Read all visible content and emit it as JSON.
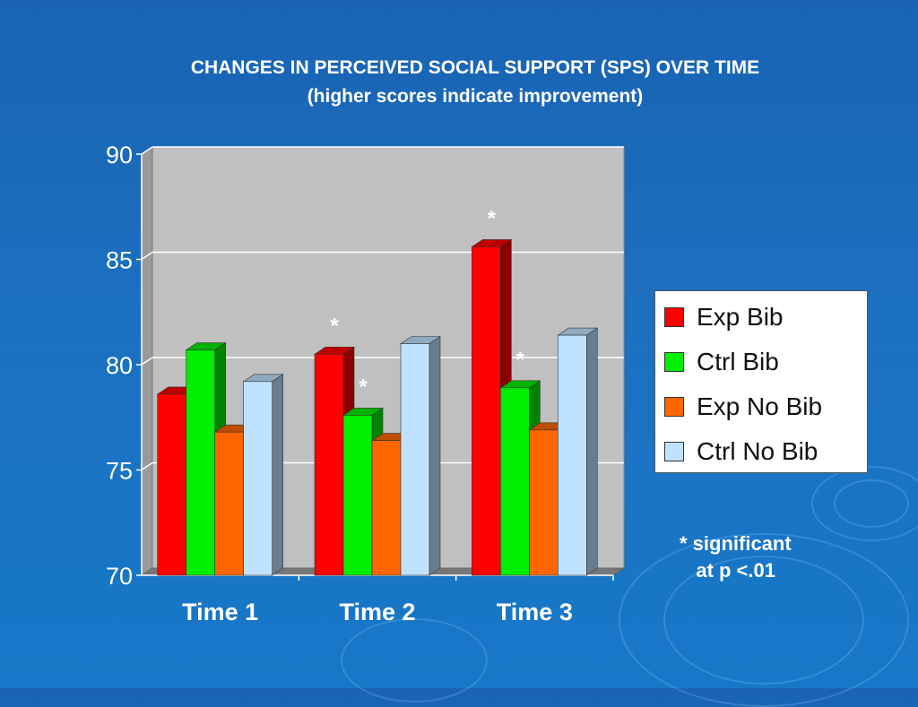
{
  "slide": {
    "title_line1": "CHANGES IN PERCEIVED SOCIAL SUPPORT (SPS) OVER TIME",
    "title_line2": "(higher scores indicate improvement)",
    "note_line1": "* significant",
    "note_line2": "   at p <.01"
  },
  "chart_data": {
    "type": "bar",
    "title": "CHANGES IN PERCEIVED SOCIAL SUPPORT (SPS) OVER TIME",
    "subtitle": "(higher scores indicate improvement)",
    "categories": [
      "Time 1",
      "Time 2",
      "Time 3"
    ],
    "series": [
      {
        "name": "Exp Bib",
        "color": "#ff0000",
        "values": [
          78.6,
          80.5,
          85.6
        ],
        "significant": [
          false,
          true,
          true
        ]
      },
      {
        "name": "Ctrl Bib",
        "color": "#00ee00",
        "values": [
          80.7,
          77.6,
          78.9
        ],
        "significant": [
          false,
          true,
          true
        ]
      },
      {
        "name": "Exp No Bib",
        "color": "#ff6600",
        "values": [
          76.8,
          76.4,
          76.9
        ],
        "significant": [
          false,
          false,
          false
        ]
      },
      {
        "name": "Ctrl No Bib",
        "color": "#bfe3ff",
        "values": [
          79.2,
          81.0,
          81.4
        ],
        "significant": [
          false,
          false,
          false
        ]
      }
    ],
    "ylim": [
      70,
      90
    ],
    "yticks": [
      70,
      75,
      80,
      85,
      90
    ],
    "grid": true,
    "legend_position": "right",
    "significance_marker": "*",
    "annotation": "* significant at p <.01"
  }
}
